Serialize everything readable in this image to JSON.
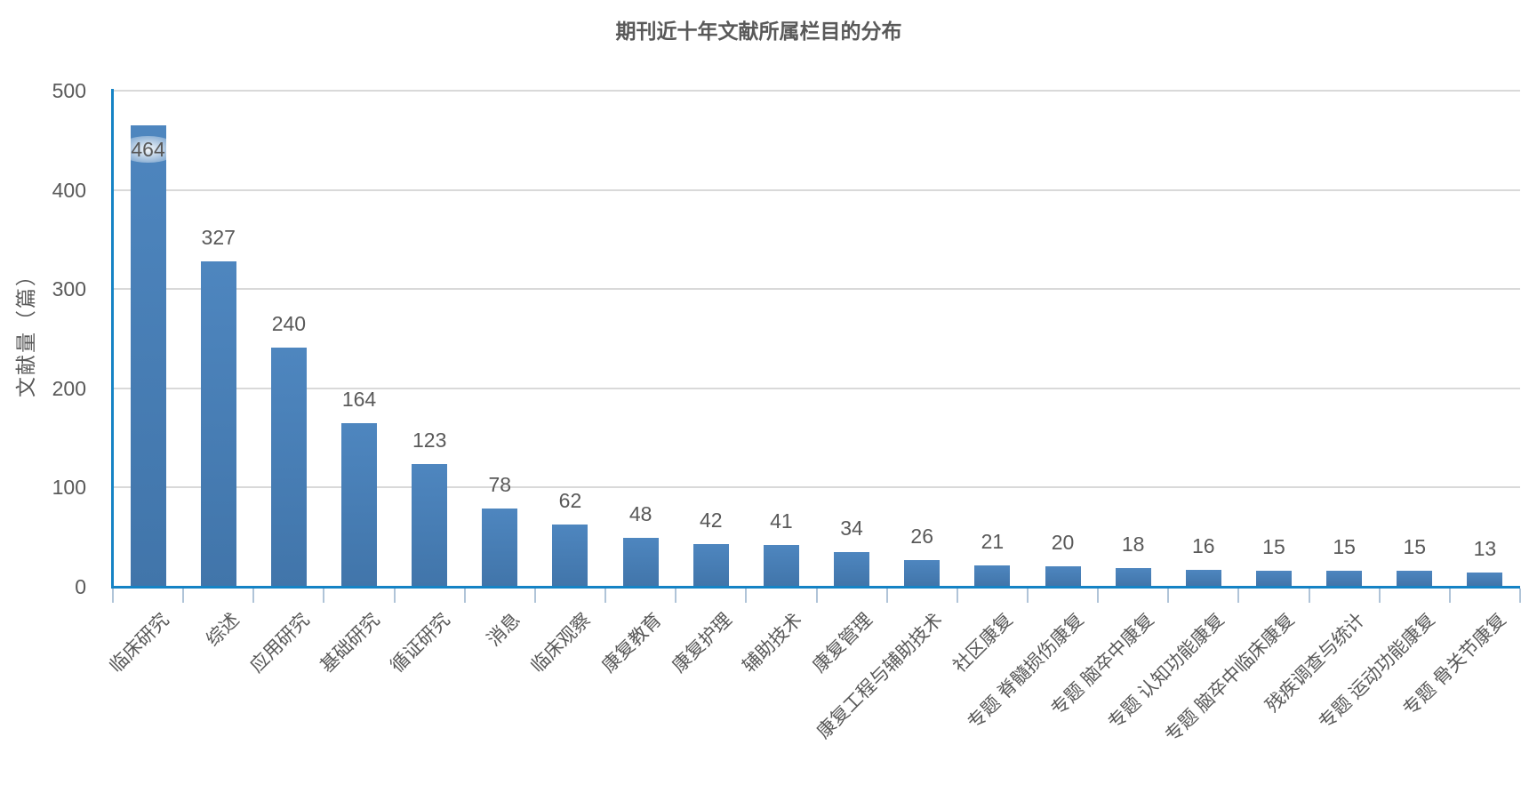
{
  "chart_data": {
    "type": "bar",
    "title": "期刊近十年文献所属栏目的分布",
    "ylabel": "文献量（篇）",
    "xlabel": "",
    "categories": [
      "临床研究",
      "综述",
      "应用研究",
      "基础研究",
      "循证研究",
      "消息",
      "临床观察",
      "康复教育",
      "康复护理",
      "辅助技术",
      "康复管理",
      "康复工程与辅助技术",
      "社区康复",
      "专题 脊髓损伤康复",
      "专题 脑卒中康复",
      "专题 认知功能康复",
      "专题 脑卒中临床康复",
      "残疾调查与统计",
      "专题 运动功能康复",
      "专题 骨关节康复"
    ],
    "values": [
      464,
      327,
      240,
      164,
      123,
      78,
      62,
      48,
      42,
      41,
      34,
      26,
      21,
      20,
      18,
      16,
      15,
      15,
      15,
      13
    ],
    "ylim": [
      0,
      500
    ],
    "yticks": [
      0,
      100,
      200,
      300,
      400,
      500
    ],
    "grid": true,
    "legend": "none",
    "data_labels_shown": true,
    "first_label_inside_bar": true,
    "colors": {
      "bar_top": "#4e86bf",
      "bar_bottom": "#4175aa",
      "axis_line": "#1583c5",
      "tick_mark": "#b0c4d8",
      "gridline": "#d9d9d9",
      "text": "#595959"
    }
  }
}
